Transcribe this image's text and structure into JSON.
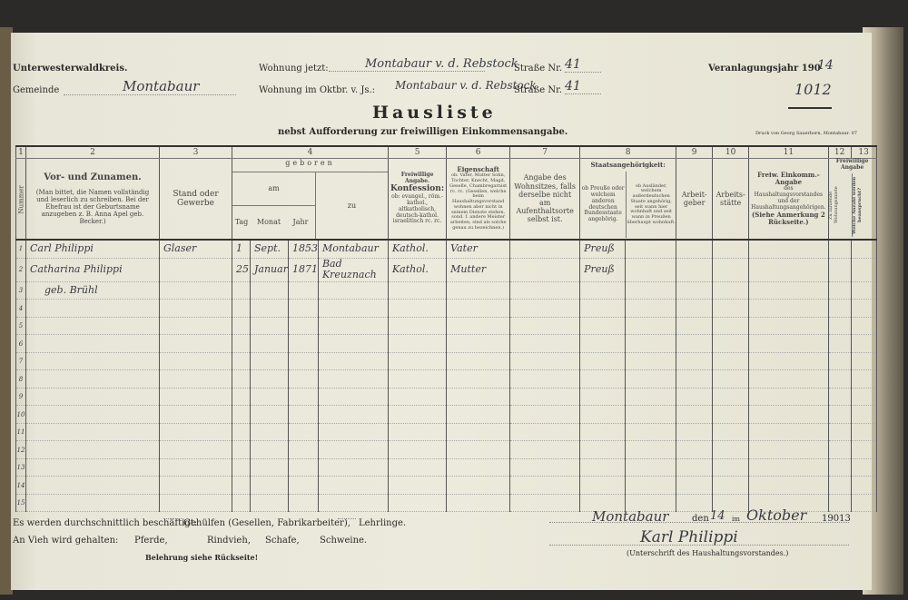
{
  "header": {
    "district": "Unterwesterwaldkreis.",
    "municipality_label": "Gemeinde",
    "municipality_value": "Montabaur",
    "residence_now_label": "Wohnung jetzt:",
    "residence_now_value": "Montabaur v. d. Rebstock",
    "street_label": "Straße Nr.",
    "residence_now_number": "41",
    "residence_oct_label": "Wohnung im Oktbr. v. Js.:",
    "residence_oct_value": "Montabaur v. d. Rebstock",
    "residence_oct_number": "41",
    "assessment_year_label": "Veranlagungsjahr 190",
    "assessment_year_value": "14",
    "list_number": "1012",
    "title": "Hausliste",
    "subtitle": "nebst Aufforderung zur freiwilligen Einkommensangabe.",
    "printer": "Druck von Georg Sauerborn, Montabaur. 07"
  },
  "columns": {
    "numbers": [
      "1",
      "2",
      "3",
      "4",
      "5",
      "6",
      "7",
      "8",
      "9",
      "10",
      "11",
      "12",
      "13"
    ],
    "c1": "Nummer",
    "c2_title": "Vor- und Zunamen.",
    "c2_note": "(Man bittet, die Namen vollständig und leserlich zu schreiben. Bei der Ehefrau ist der Geburtsname anzugeben z. B. Anna Apel geb. Becker.)",
    "c3": "Stand oder Gewerbe",
    "c4_geboren": "geboren",
    "c4_am": "am",
    "c4_tag": "Tag",
    "c4_monat": "Monat",
    "c4_jahr": "Jahr",
    "c4_zu": "zu",
    "c5_title": "Freiwillige Angabe.",
    "c5_sub": "Konfession:",
    "c5_note": "ob: evangel., röm.-kathol., altkatholisch, deutsch-kathol. israelitisch rc. rc.",
    "c6_title": "Eigenschaft",
    "c6_note": "ob: Vater, Mutter Sohn, Tochter, Knecht, Magd, Geselle, Chambregarnist rc. rc. (Gesellen, welche beim Haushaltungsvorstand wohnen aber nicht in seinem Dienste stehen, sond. f. andere Meister arbeiten, sind als solche genau zu bezeichnen.)",
    "c7": "Angabe des Wohnsitzes, falls derselbe nicht am Aufenthaltsorte selbst ist.",
    "c8_title": "Staatsangehörigkeit:",
    "c8a": "ob Preuße oder welchem anderen deutschen Bundesstaate angehörig.",
    "c8b": "ob Ausländer, welchem außerdeutschen Staate angehörig, seit wann hier wohnhaft und seit wann in Preußen überhaupt wohnhaft.",
    "c9": "Arbeit-geber",
    "c10": "Arbeits-stätte",
    "c11_title": "Freiw. Einkomm.-Angabe",
    "c11_note": "des Haushaltungsvorstandes und der Haushaltungsangehörigen.",
    "c11_ref": "(Siehe Anmerkung 2 Rückseite.)",
    "c1213_title": "Freiwillige Angabe",
    "c12": "Zu zahlende Wohnungsmiete",
    "c13": "Welche Anzahl werden beansprucht?"
  },
  "rows": [
    {
      "nr": "1",
      "name": "Carl Philippi",
      "name2": "",
      "stand": "Glaser",
      "tag": "1",
      "monat": "Sept.",
      "jahr": "1853",
      "ort": "Montabaur",
      "konfession": "Kathol.",
      "eigenschaft": "Vater",
      "staat": "Preuß"
    },
    {
      "nr": "2",
      "name": "Catharina Philippi",
      "name2": "geb. Brühl",
      "stand": "",
      "tag": "25",
      "monat": "Januar",
      "jahr": "1871",
      "ort": "Bad Kreuznach",
      "konfession": "Kathol.",
      "eigenschaft": "Mutter",
      "staat": "Preuß"
    }
  ],
  "footer": {
    "employed_label": "Es werden durchschnittlich beschäftigt:",
    "assistants": "Gehülfen (Gesellen, Fabrikarbeiter),",
    "apprentices": "Lehrlinge.",
    "livestock_label": "An Vieh wird gehalten:",
    "horses": "Pferde,",
    "cattle": "Rindvieh,",
    "sheep": "Schafe,",
    "pigs": "Schweine.",
    "instruction": "Belehrung siehe Rückseite!",
    "place": "Montabaur",
    "den_label": "den",
    "day": "14",
    "im_label": "im",
    "month": "Oktober",
    "year": "19013",
    "signature": "Karl Philippi",
    "signature_label": "(Unterschrift des Haushaltungsvorstandes.)"
  }
}
